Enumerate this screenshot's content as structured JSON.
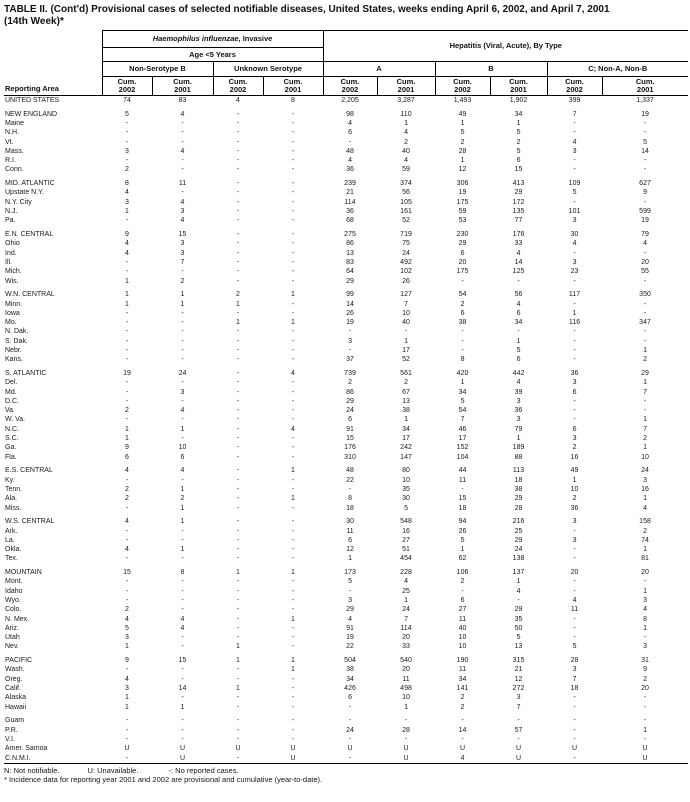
{
  "title": {
    "line1": "TABLE II. (Cont'd) Provisional cases of selected notifiable diseases, United States, weeks ending April 6, 2002, and April 7, 2001",
    "line2": "(14th Week)*"
  },
  "header": {
    "reporting_area": "Reporting Area",
    "haemophilus": {
      "name_italic": "Haemophilus influenzae",
      "name_rest": ", Invasive",
      "age_group": "Age <5 Years",
      "subgroups": [
        "Non-Serotype B",
        "Unknown Serotype"
      ]
    },
    "hepatitis": {
      "name": "Hepatitis (Viral, Acute), By Type",
      "subgroups": [
        "A",
        "B",
        "C; Non-A, Non-B"
      ]
    },
    "cum_label": "Cum.",
    "year_pairs": [
      "2002",
      "2001"
    ],
    "group_count": 5
  },
  "rows": [
    {
      "area": "UNITED STATES",
      "level": "total",
      "gap_before": false,
      "values": [
        "74",
        "83",
        "4",
        "8",
        "2,205",
        "3,287",
        "1,493",
        "1,902",
        "399",
        "1,337"
      ]
    },
    {
      "area": "NEW ENGLAND",
      "level": "region",
      "gap_before": true,
      "values": [
        "5",
        "4",
        "-",
        "-",
        "98",
        "110",
        "49",
        "34",
        "7",
        "19"
      ]
    },
    {
      "area": "Maine",
      "level": "state",
      "gap_before": false,
      "values": [
        "-",
        "-",
        "-",
        "-",
        "4",
        "1",
        "1",
        "1",
        "-",
        "-"
      ]
    },
    {
      "area": "N.H.",
      "level": "state",
      "gap_before": false,
      "values": [
        "-",
        "-",
        "-",
        "-",
        "6",
        "4",
        "5",
        "5",
        "-",
        "-"
      ]
    },
    {
      "area": "Vt.",
      "level": "state",
      "gap_before": false,
      "values": [
        "-",
        "-",
        "-",
        "-",
        "-",
        "2",
        "2",
        "2",
        "4",
        "5"
      ]
    },
    {
      "area": "Mass.",
      "level": "state",
      "gap_before": false,
      "values": [
        "3",
        "4",
        "-",
        "-",
        "48",
        "40",
        "28",
        "5",
        "3",
        "14"
      ]
    },
    {
      "area": "R.I.",
      "level": "state",
      "gap_before": false,
      "values": [
        "-",
        "-",
        "-",
        "-",
        "4",
        "4",
        "1",
        "6",
        "-",
        "-"
      ]
    },
    {
      "area": "Conn.",
      "level": "state",
      "gap_before": false,
      "values": [
        "2",
        "-",
        "-",
        "-",
        "36",
        "59",
        "12",
        "15",
        "-",
        "-"
      ]
    },
    {
      "area": "MID. ATLANTIC",
      "level": "region",
      "gap_before": true,
      "values": [
        "8",
        "11",
        "-",
        "-",
        "239",
        "374",
        "306",
        "413",
        "109",
        "627"
      ]
    },
    {
      "area": "Upstate N.Y.",
      "level": "state",
      "gap_before": false,
      "values": [
        "4",
        "-",
        "-",
        "-",
        "21",
        "56",
        "19",
        "29",
        "5",
        "9"
      ]
    },
    {
      "area": "N.Y. City",
      "level": "state",
      "gap_before": false,
      "values": [
        "3",
        "4",
        "-",
        "-",
        "114",
        "105",
        "175",
        "172",
        "-",
        "-"
      ]
    },
    {
      "area": "N.J.",
      "level": "state",
      "gap_before": false,
      "values": [
        "1",
        "3",
        "-",
        "-",
        "36",
        "161",
        "59",
        "135",
        "101",
        "599"
      ]
    },
    {
      "area": "Pa.",
      "level": "state",
      "gap_before": false,
      "values": [
        "-",
        "4",
        "-",
        "-",
        "68",
        "52",
        "53",
        "77",
        "3",
        "19"
      ]
    },
    {
      "area": "E.N. CENTRAL",
      "level": "region",
      "gap_before": true,
      "values": [
        "9",
        "15",
        "-",
        "-",
        "275",
        "719",
        "230",
        "176",
        "30",
        "79"
      ]
    },
    {
      "area": "Ohio",
      "level": "state",
      "gap_before": false,
      "values": [
        "4",
        "3",
        "-",
        "-",
        "86",
        "75",
        "29",
        "33",
        "4",
        "4"
      ]
    },
    {
      "area": "Ind.",
      "level": "state",
      "gap_before": false,
      "values": [
        "4",
        "3",
        "-",
        "-",
        "13",
        "24",
        "6",
        "4",
        "-",
        "-"
      ]
    },
    {
      "area": "Ill.",
      "level": "state",
      "gap_before": false,
      "values": [
        "-",
        "7",
        "-",
        "-",
        "83",
        "492",
        "20",
        "14",
        "3",
        "20"
      ]
    },
    {
      "area": "Mich.",
      "level": "state",
      "gap_before": false,
      "values": [
        "-",
        "-",
        "-",
        "-",
        "64",
        "102",
        "175",
        "125",
        "23",
        "55"
      ]
    },
    {
      "area": "Wis.",
      "level": "state",
      "gap_before": false,
      "values": [
        "1",
        "2",
        "-",
        "-",
        "29",
        "26",
        "-",
        "-",
        "-",
        "-"
      ]
    },
    {
      "area": "W.N. CENTRAL",
      "level": "region",
      "gap_before": true,
      "values": [
        "1",
        "1",
        "2",
        "1",
        "99",
        "127",
        "54",
        "56",
        "117",
        "350"
      ]
    },
    {
      "area": "Minn.",
      "level": "state",
      "gap_before": false,
      "values": [
        "1",
        "1",
        "1",
        "-",
        "14",
        "7",
        "2",
        "4",
        "-",
        "-"
      ]
    },
    {
      "area": "Iowa",
      "level": "state",
      "gap_before": false,
      "values": [
        "-",
        "-",
        "-",
        "-",
        "26",
        "10",
        "6",
        "6",
        "1",
        "-"
      ]
    },
    {
      "area": "Mo.",
      "level": "state",
      "gap_before": false,
      "values": [
        "-",
        "-",
        "1",
        "1",
        "19",
        "40",
        "38",
        "34",
        "116",
        "347"
      ]
    },
    {
      "area": "N. Dak.",
      "level": "state",
      "gap_before": false,
      "values": [
        "-",
        "-",
        "-",
        "-",
        "-",
        "-",
        "-",
        "-",
        "-",
        "-"
      ]
    },
    {
      "area": "S. Dak.",
      "level": "state",
      "gap_before": false,
      "values": [
        "-",
        "-",
        "-",
        "-",
        "3",
        "1",
        "-",
        "1",
        "-",
        "-"
      ]
    },
    {
      "area": "Nebr.",
      "level": "state",
      "gap_before": false,
      "values": [
        "-",
        "-",
        "-",
        "-",
        "-",
        "17",
        "-",
        "5",
        "-",
        "1"
      ]
    },
    {
      "area": "Kans.",
      "level": "state",
      "gap_before": false,
      "values": [
        "-",
        "-",
        "-",
        "-",
        "37",
        "52",
        "8",
        "6",
        "-",
        "2"
      ]
    },
    {
      "area": "S. ATLANTIC",
      "level": "region",
      "gap_before": true,
      "values": [
        "19",
        "24",
        "-",
        "4",
        "739",
        "561",
        "420",
        "442",
        "36",
        "29"
      ]
    },
    {
      "area": "Del.",
      "level": "state",
      "gap_before": false,
      "values": [
        "-",
        "-",
        "-",
        "-",
        "2",
        "2",
        "1",
        "4",
        "3",
        "1"
      ]
    },
    {
      "area": "Md.",
      "level": "state",
      "gap_before": false,
      "values": [
        "-",
        "3",
        "-",
        "-",
        "86",
        "67",
        "34",
        "39",
        "6",
        "7"
      ]
    },
    {
      "area": "D.C.",
      "level": "state",
      "gap_before": false,
      "values": [
        "-",
        "-",
        "-",
        "-",
        "29",
        "13",
        "5",
        "3",
        "-",
        "-"
      ]
    },
    {
      "area": "Va.",
      "level": "state",
      "gap_before": false,
      "values": [
        "2",
        "4",
        "-",
        "-",
        "24",
        "38",
        "54",
        "36",
        "-",
        "-"
      ]
    },
    {
      "area": "W. Va.",
      "level": "state",
      "gap_before": false,
      "values": [
        "-",
        "-",
        "-",
        "-",
        "6",
        "1",
        "7",
        "3",
        "-",
        "1"
      ]
    },
    {
      "area": "N.C.",
      "level": "state",
      "gap_before": false,
      "values": [
        "1",
        "1",
        "-",
        "4",
        "91",
        "34",
        "46",
        "79",
        "6",
        "7"
      ]
    },
    {
      "area": "S.C.",
      "level": "state",
      "gap_before": false,
      "values": [
        "1",
        "-",
        "-",
        "-",
        "15",
        "17",
        "17",
        "1",
        "3",
        "2"
      ]
    },
    {
      "area": "Ga.",
      "level": "state",
      "gap_before": false,
      "values": [
        "9",
        "10",
        "-",
        "-",
        "176",
        "242",
        "152",
        "189",
        "2",
        "1"
      ]
    },
    {
      "area": "Fla.",
      "level": "state",
      "gap_before": false,
      "values": [
        "6",
        "6",
        "-",
        "-",
        "310",
        "147",
        "104",
        "88",
        "16",
        "10"
      ]
    },
    {
      "area": "E.S. CENTRAL",
      "level": "region",
      "gap_before": true,
      "values": [
        "4",
        "4",
        "-",
        "1",
        "48",
        "80",
        "44",
        "113",
        "49",
        "24"
      ]
    },
    {
      "area": "Ky.",
      "level": "state",
      "gap_before": false,
      "values": [
        "-",
        "-",
        "-",
        "-",
        "22",
        "10",
        "11",
        "18",
        "1",
        "3"
      ]
    },
    {
      "area": "Tenn.",
      "level": "state",
      "gap_before": false,
      "values": [
        "2",
        "1",
        "-",
        "-",
        "-",
        "35",
        "-",
        "38",
        "10",
        "16"
      ]
    },
    {
      "area": "Ala.",
      "level": "state",
      "gap_before": false,
      "values": [
        "2",
        "2",
        "-",
        "1",
        "8",
        "30",
        "15",
        "29",
        "2",
        "1"
      ]
    },
    {
      "area": "Miss.",
      "level": "state",
      "gap_before": false,
      "values": [
        "-",
        "1",
        "-",
        "-",
        "18",
        "5",
        "18",
        "28",
        "36",
        "4"
      ]
    },
    {
      "area": "W.S. CENTRAL",
      "level": "region",
      "gap_before": true,
      "values": [
        "4",
        "1",
        "-",
        "-",
        "30",
        "548",
        "94",
        "216",
        "3",
        "158"
      ]
    },
    {
      "area": "Ark.",
      "level": "state",
      "gap_before": false,
      "values": [
        "-",
        "-",
        "-",
        "-",
        "11",
        "16",
        "26",
        "25",
        "-",
        "2"
      ]
    },
    {
      "area": "La.",
      "level": "state",
      "gap_before": false,
      "values": [
        "-",
        "-",
        "-",
        "-",
        "6",
        "27",
        "5",
        "29",
        "3",
        "74"
      ]
    },
    {
      "area": "Okla.",
      "level": "state",
      "gap_before": false,
      "values": [
        "4",
        "1",
        "-",
        "-",
        "12",
        "51",
        "1",
        "24",
        "-",
        "1"
      ]
    },
    {
      "area": "Tex.",
      "level": "state",
      "gap_before": false,
      "values": [
        "-",
        "-",
        "-",
        "-",
        "1",
        "454",
        "62",
        "138",
        "-",
        "81"
      ]
    },
    {
      "area": "MOUNTAIN",
      "level": "region",
      "gap_before": true,
      "values": [
        "15",
        "8",
        "1",
        "1",
        "173",
        "228",
        "106",
        "137",
        "20",
        "20"
      ]
    },
    {
      "area": "Mont.",
      "level": "state",
      "gap_before": false,
      "values": [
        "-",
        "-",
        "-",
        "-",
        "5",
        "4",
        "2",
        "1",
        "-",
        "-"
      ]
    },
    {
      "area": "Idaho",
      "level": "state",
      "gap_before": false,
      "values": [
        "-",
        "-",
        "-",
        "-",
        "-",
        "25",
        "-",
        "4",
        "-",
        "1"
      ]
    },
    {
      "area": "Wyo.",
      "level": "state",
      "gap_before": false,
      "values": [
        "-",
        "-",
        "-",
        "-",
        "3",
        "1",
        "6",
        "-",
        "4",
        "3"
      ]
    },
    {
      "area": "Colo.",
      "level": "state",
      "gap_before": false,
      "values": [
        "2",
        "-",
        "-",
        "-",
        "29",
        "24",
        "27",
        "29",
        "11",
        "4"
      ]
    },
    {
      "area": "N. Mex.",
      "level": "state",
      "gap_before": false,
      "values": [
        "4",
        "4",
        "-",
        "1",
        "4",
        "7",
        "11",
        "35",
        "-",
        "8"
      ]
    },
    {
      "area": "Ariz.",
      "level": "state",
      "gap_before": false,
      "values": [
        "5",
        "4",
        "-",
        "-",
        "91",
        "114",
        "40",
        "50",
        "-",
        "1"
      ]
    },
    {
      "area": "Utah",
      "level": "state",
      "gap_before": false,
      "values": [
        "3",
        "-",
        "-",
        "-",
        "19",
        "20",
        "10",
        "5",
        "-",
        "-"
      ]
    },
    {
      "area": "Nev.",
      "level": "state",
      "gap_before": false,
      "values": [
        "1",
        "-",
        "1",
        "-",
        "22",
        "33",
        "10",
        "13",
        "5",
        "3"
      ]
    },
    {
      "area": "PACIFIC",
      "level": "region",
      "gap_before": true,
      "values": [
        "9",
        "15",
        "1",
        "1",
        "504",
        "540",
        "190",
        "315",
        "28",
        "31"
      ]
    },
    {
      "area": "Wash.",
      "level": "state",
      "gap_before": false,
      "values": [
        "-",
        "-",
        "-",
        "1",
        "38",
        "20",
        "11",
        "21",
        "3",
        "9"
      ]
    },
    {
      "area": "Oreg.",
      "level": "state",
      "gap_before": false,
      "values": [
        "4",
        "-",
        "-",
        "-",
        "34",
        "11",
        "34",
        "12",
        "7",
        "2"
      ]
    },
    {
      "area": "Calif.",
      "level": "state",
      "gap_before": false,
      "values": [
        "3",
        "14",
        "1",
        "-",
        "426",
        "498",
        "141",
        "272",
        "18",
        "20"
      ]
    },
    {
      "area": "Alaska",
      "level": "state",
      "gap_before": false,
      "values": [
        "1",
        "-",
        "-",
        "-",
        "6",
        "10",
        "2",
        "3",
        "-",
        "-"
      ]
    },
    {
      "area": "Hawaii",
      "level": "state",
      "gap_before": false,
      "values": [
        "1",
        "1",
        "-",
        "-",
        "-",
        "1",
        "2",
        "7",
        "-",
        "-"
      ]
    },
    {
      "area": "Guam",
      "level": "territory",
      "gap_before": true,
      "values": [
        "-",
        "-",
        "-",
        "-",
        "-",
        "-",
        "-",
        "-",
        "-",
        "-"
      ]
    },
    {
      "area": "P.R.",
      "level": "territory",
      "gap_before": false,
      "values": [
        "-",
        "-",
        "-",
        "-",
        "24",
        "28",
        "14",
        "57",
        "-",
        "1"
      ]
    },
    {
      "area": "V.I.",
      "level": "territory",
      "gap_before": false,
      "values": [
        "-",
        "-",
        "-",
        "-",
        "-",
        "-",
        "-",
        "-",
        "-",
        "-"
      ]
    },
    {
      "area": "Amer. Samoa",
      "level": "territory",
      "gap_before": false,
      "values": [
        "U",
        "U",
        "U",
        "U",
        "U",
        "U",
        "U",
        "U",
        "U",
        "U"
      ]
    },
    {
      "area": "C.N.M.I.",
      "level": "territory",
      "gap_before": false,
      "values": [
        "-",
        "U",
        "-",
        "U",
        "-",
        "U",
        "4",
        "U",
        "-",
        "U"
      ]
    }
  ],
  "footnotes": {
    "legend": [
      "N: Not notifiable.",
      "U: Unavailable.",
      "-: No reported cases."
    ],
    "note": "* Incidence data for reporting year 2001 and 2002 are provisional and cumulative (year-to-date)."
  }
}
